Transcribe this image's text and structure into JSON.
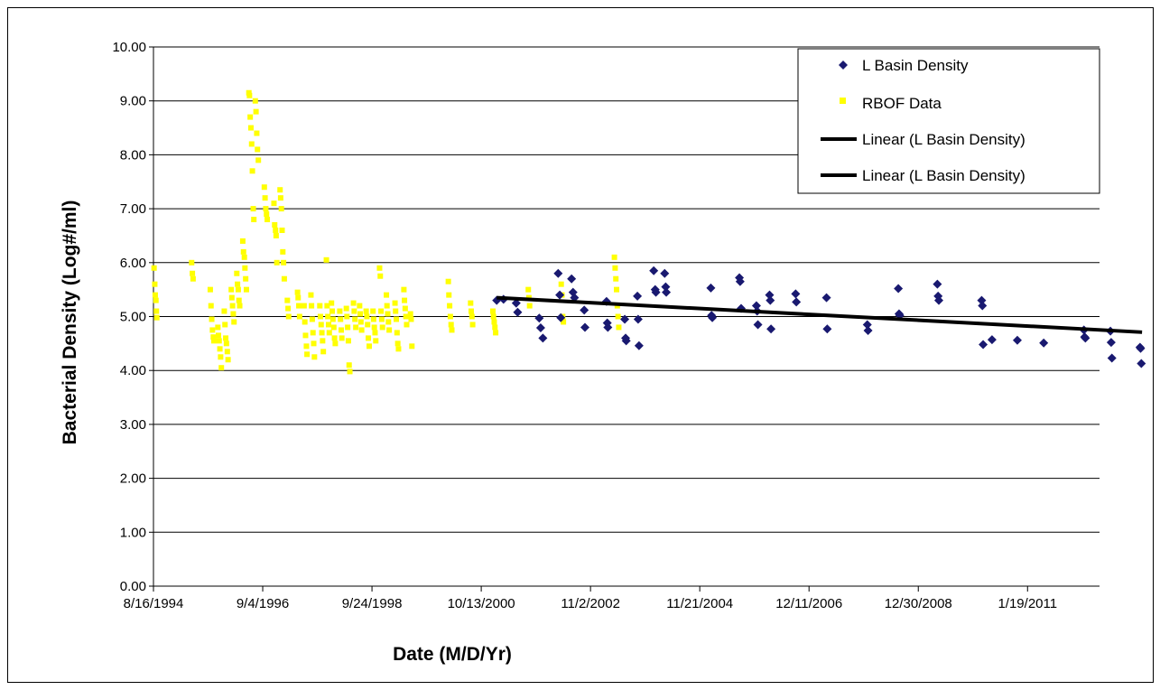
{
  "chart_data": {
    "type": "scatter",
    "xlabel": "Date (M/D/Yr)",
    "ylabel": "Bacterial Density (Log#/ml)",
    "x_axis": {
      "type": "date",
      "min": "1994-08-16",
      "max": "2012-05-27",
      "ticks": [
        "1994-08-16",
        "1996-09-04",
        "1998-09-24",
        "2000-10-13",
        "2002-11-02",
        "2004-11-21",
        "2006-12-11",
        "2008-12-30",
        "2011-01-19"
      ],
      "tick_labels": [
        "8/16/1994",
        "9/4/1996",
        "9/24/1998",
        "10/13/2000",
        "11/2/2002",
        "11/21/2004",
        "12/11/2006",
        "12/30/2008",
        "1/19/2011"
      ]
    },
    "y_axis": {
      "min": 0,
      "max": 10,
      "ticks": [
        0,
        1,
        2,
        3,
        4,
        5,
        6,
        7,
        8,
        9,
        10
      ],
      "tick_labels": [
        "0.00",
        "1.00",
        "2.00",
        "3.00",
        "4.00",
        "5.00",
        "6.00",
        "7.00",
        "8.00",
        "9.00",
        "10.00"
      ]
    },
    "grid": "horizontal",
    "legend_position": "top-right",
    "legend": [
      "L Basin Density",
      "RBOF Data",
      "Linear (L Basin Density)",
      "Linear (L Basin Density)"
    ],
    "colors": {
      "l_basin": "#191970",
      "rbof": "#ffff00",
      "trend": "#000000",
      "grid": "#000000"
    },
    "series": [
      {
        "name": "L Basin Density",
        "marker": "diamond",
        "points": [
          [
            "2001-01-27",
            5.3
          ],
          [
            "2001-03-15",
            5.32
          ],
          [
            "2001-06-10",
            5.25
          ],
          [
            "2001-06-20",
            5.08
          ],
          [
            "2001-11-15",
            4.97
          ],
          [
            "2001-11-25",
            4.79
          ],
          [
            "2001-12-10",
            4.6
          ],
          [
            "2002-03-25",
            5.8
          ],
          [
            "2002-04-05",
            5.4
          ],
          [
            "2002-04-12",
            4.98
          ],
          [
            "2002-06-25",
            5.7
          ],
          [
            "2002-07-05",
            5.45
          ],
          [
            "2002-07-15",
            5.35
          ],
          [
            "2002-09-20",
            5.12
          ],
          [
            "2002-09-25",
            4.8
          ],
          [
            "2003-02-20",
            5.28
          ],
          [
            "2003-02-25",
            4.88
          ],
          [
            "2003-03-01",
            4.8
          ],
          [
            "2003-06-25",
            4.95
          ],
          [
            "2003-07-01",
            4.6
          ],
          [
            "2003-07-05",
            4.55
          ],
          [
            "2003-09-20",
            5.38
          ],
          [
            "2003-09-25",
            4.95
          ],
          [
            "2003-10-01",
            4.46
          ],
          [
            "2004-01-10",
            5.85
          ],
          [
            "2004-01-20",
            5.5
          ],
          [
            "2004-01-25",
            5.45
          ],
          [
            "2004-03-25",
            5.8
          ],
          [
            "2004-04-01",
            5.55
          ],
          [
            "2004-04-05",
            5.45
          ],
          [
            "2005-02-05",
            5.53
          ],
          [
            "2005-02-10",
            5.02
          ],
          [
            "2005-02-15",
            4.98
          ],
          [
            "2005-08-20",
            5.72
          ],
          [
            "2005-08-25",
            5.65
          ],
          [
            "2005-09-01",
            5.15
          ],
          [
            "2005-12-15",
            5.2
          ],
          [
            "2005-12-20",
            5.1
          ],
          [
            "2005-12-25",
            4.85
          ],
          [
            "2006-03-15",
            5.4
          ],
          [
            "2006-03-20",
            5.3
          ],
          [
            "2006-03-25",
            4.77
          ],
          [
            "2006-09-10",
            5.42
          ],
          [
            "2006-09-15",
            5.27
          ],
          [
            "2007-04-10",
            5.35
          ],
          [
            "2007-04-15",
            4.77
          ],
          [
            "2008-01-15",
            4.85
          ],
          [
            "2008-01-20",
            4.74
          ],
          [
            "2008-08-15",
            5.52
          ],
          [
            "2008-08-20",
            5.05
          ],
          [
            "2008-08-25",
            5.02
          ],
          [
            "2009-05-10",
            5.6
          ],
          [
            "2009-05-15",
            5.38
          ],
          [
            "2009-05-20",
            5.3
          ],
          [
            "2010-03-10",
            5.3
          ],
          [
            "2010-03-15",
            5.2
          ],
          [
            "2010-03-20",
            4.48
          ],
          [
            "2010-11-10",
            4.56
          ],
          [
            "2010-05-20",
            4.57
          ],
          [
            "2011-05-10",
            4.51
          ],
          [
            "2012-02-10",
            4.75
          ],
          [
            "2012-02-15",
            4.62
          ],
          [
            "2012-02-20",
            4.6
          ],
          [
            "2012-08-10",
            4.73
          ],
          [
            "2012-08-15",
            4.52
          ],
          [
            "2012-08-20",
            4.23
          ],
          [
            "2013-03-01",
            4.43
          ],
          [
            "2013-03-05",
            4.41
          ],
          [
            "2013-03-10",
            4.13
          ]
        ]
      },
      {
        "name": "RBOF Data",
        "marker": "square",
        "points": [
          [
            "1994-08-20",
            5.9
          ],
          [
            "1994-08-25",
            5.6
          ],
          [
            "1994-08-28",
            5.4
          ],
          [
            "1994-09-02",
            5.3
          ],
          [
            "1994-09-05",
            5.1
          ],
          [
            "1994-09-08",
            4.98
          ],
          [
            "1995-05-05",
            6.0
          ],
          [
            "1995-05-10",
            5.8
          ],
          [
            "1995-05-15",
            5.7
          ],
          [
            "1995-09-10",
            5.5
          ],
          [
            "1995-09-15",
            5.2
          ],
          [
            "1995-09-20",
            4.95
          ],
          [
            "1995-09-25",
            4.75
          ],
          [
            "1995-10-01",
            4.62
          ],
          [
            "1995-10-05",
            4.55
          ],
          [
            "1995-11-01",
            4.8
          ],
          [
            "1995-11-05",
            4.65
          ],
          [
            "1995-11-10",
            4.55
          ],
          [
            "1995-11-15",
            4.4
          ],
          [
            "1995-11-20",
            4.25
          ],
          [
            "1995-11-25",
            4.05
          ],
          [
            "1995-12-15",
            5.1
          ],
          [
            "1995-12-20",
            4.85
          ],
          [
            "1995-12-25",
            4.6
          ],
          [
            "1995-12-30",
            4.5
          ],
          [
            "1996-01-05",
            4.35
          ],
          [
            "1996-01-10",
            4.2
          ],
          [
            "1996-02-01",
            5.5
          ],
          [
            "1996-02-05",
            5.35
          ],
          [
            "1996-02-10",
            5.2
          ],
          [
            "1996-02-15",
            5.05
          ],
          [
            "1996-02-20",
            4.9
          ],
          [
            "1996-03-10",
            5.8
          ],
          [
            "1996-03-15",
            5.6
          ],
          [
            "1996-03-20",
            5.5
          ],
          [
            "1996-03-25",
            5.3
          ],
          [
            "1996-03-30",
            5.2
          ],
          [
            "1996-04-20",
            6.4
          ],
          [
            "1996-04-25",
            6.2
          ],
          [
            "1996-05-01",
            6.1
          ],
          [
            "1996-05-05",
            5.9
          ],
          [
            "1996-05-10",
            5.7
          ],
          [
            "1996-05-15",
            5.5
          ],
          [
            "1996-06-01",
            9.15
          ],
          [
            "1996-06-05",
            9.1
          ],
          [
            "1996-06-10",
            8.7
          ],
          [
            "1996-06-15",
            8.5
          ],
          [
            "1996-06-20",
            8.2
          ],
          [
            "1996-06-25",
            7.7
          ],
          [
            "1996-07-01",
            7.0
          ],
          [
            "1996-07-05",
            6.8
          ],
          [
            "1996-07-15",
            9.0
          ],
          [
            "1996-07-20",
            8.8
          ],
          [
            "1996-07-25",
            8.4
          ],
          [
            "1996-07-30",
            8.1
          ],
          [
            "1996-08-05",
            7.9
          ],
          [
            "1996-09-15",
            7.4
          ],
          [
            "1996-09-20",
            7.2
          ],
          [
            "1996-09-25",
            7.0
          ],
          [
            "1996-09-30",
            6.9
          ],
          [
            "1996-10-05",
            6.8
          ],
          [
            "1996-11-20",
            7.1
          ],
          [
            "1996-11-25",
            6.7
          ],
          [
            "1996-12-01",
            6.6
          ],
          [
            "1996-12-05",
            6.5
          ],
          [
            "1996-12-10",
            6.0
          ],
          [
            "1997-01-01",
            7.35
          ],
          [
            "1997-01-05",
            7.2
          ],
          [
            "1997-01-10",
            7.0
          ],
          [
            "1997-01-15",
            6.6
          ],
          [
            "1997-01-20",
            6.2
          ],
          [
            "1997-01-25",
            6.0
          ],
          [
            "1997-01-30",
            5.7
          ],
          [
            "1997-02-20",
            5.3
          ],
          [
            "1997-02-25",
            5.15
          ],
          [
            "1997-03-01",
            5.0
          ],
          [
            "1997-05-01",
            5.45
          ],
          [
            "1997-05-05",
            5.35
          ],
          [
            "1997-05-10",
            5.2
          ],
          [
            "1997-05-15",
            5.0
          ],
          [
            "1997-06-15",
            5.2
          ],
          [
            "1997-06-20",
            4.9
          ],
          [
            "1997-06-25",
            4.65
          ],
          [
            "1997-07-01",
            4.45
          ],
          [
            "1997-07-05",
            4.3
          ],
          [
            "1997-08-01",
            5.4
          ],
          [
            "1997-08-05",
            5.2
          ],
          [
            "1997-08-10",
            4.95
          ],
          [
            "1997-08-15",
            4.7
          ],
          [
            "1997-08-20",
            4.5
          ],
          [
            "1997-08-25",
            4.25
          ],
          [
            "1997-10-01",
            5.2
          ],
          [
            "1997-10-05",
            5.0
          ],
          [
            "1997-10-10",
            4.85
          ],
          [
            "1997-10-15",
            4.7
          ],
          [
            "1997-10-20",
            4.55
          ],
          [
            "1997-10-25",
            4.35
          ],
          [
            "1997-11-15",
            6.05
          ],
          [
            "1997-11-20",
            5.2
          ],
          [
            "1997-11-25",
            5.0
          ],
          [
            "1997-11-30",
            4.85
          ],
          [
            "1997-12-05",
            4.7
          ],
          [
            "1997-12-20",
            5.25
          ],
          [
            "1997-12-25",
            5.1
          ],
          [
            "1997-12-30",
            4.95
          ],
          [
            "1998-01-05",
            4.8
          ],
          [
            "1998-01-10",
            4.6
          ],
          [
            "1998-01-15",
            4.5
          ],
          [
            "1998-02-15",
            5.1
          ],
          [
            "1998-02-20",
            4.95
          ],
          [
            "1998-02-25",
            4.75
          ],
          [
            "1998-03-01",
            4.6
          ],
          [
            "1998-04-01",
            5.15
          ],
          [
            "1998-04-05",
            5.0
          ],
          [
            "1998-04-10",
            4.8
          ],
          [
            "1998-04-15",
            4.55
          ],
          [
            "1998-04-20",
            4.1
          ],
          [
            "1998-04-25",
            3.98
          ],
          [
            "1998-05-20",
            5.25
          ],
          [
            "1998-05-25",
            5.1
          ],
          [
            "1998-05-30",
            4.95
          ],
          [
            "1998-06-05",
            4.8
          ],
          [
            "1998-07-01",
            5.2
          ],
          [
            "1998-07-05",
            5.05
          ],
          [
            "1998-07-10",
            4.9
          ],
          [
            "1998-07-15",
            4.75
          ],
          [
            "1998-08-15",
            5.1
          ],
          [
            "1998-08-20",
            5.0
          ],
          [
            "1998-08-25",
            4.85
          ],
          [
            "1998-08-30",
            4.6
          ],
          [
            "1998-09-05",
            4.45
          ],
          [
            "1998-10-01",
            5.1
          ],
          [
            "1998-10-05",
            4.95
          ],
          [
            "1998-10-10",
            4.8
          ],
          [
            "1998-10-15",
            4.7
          ],
          [
            "1998-10-20",
            4.55
          ],
          [
            "1998-11-15",
            5.9
          ],
          [
            "1998-11-20",
            5.75
          ],
          [
            "1998-11-25",
            5.1
          ],
          [
            "1998-11-30",
            4.95
          ],
          [
            "1998-12-05",
            4.8
          ],
          [
            "1999-01-01",
            5.4
          ],
          [
            "1999-01-05",
            5.2
          ],
          [
            "1999-01-10",
            5.05
          ],
          [
            "1999-01-15",
            4.9
          ],
          [
            "1999-01-20",
            4.75
          ],
          [
            "1999-03-01",
            5.25
          ],
          [
            "1999-03-05",
            5.1
          ],
          [
            "1999-03-10",
            4.95
          ],
          [
            "1999-03-15",
            4.7
          ],
          [
            "1999-03-20",
            4.5
          ],
          [
            "1999-03-25",
            4.4
          ],
          [
            "1999-05-01",
            5.5
          ],
          [
            "1999-05-05",
            5.3
          ],
          [
            "1999-05-10",
            5.15
          ],
          [
            "1999-05-15",
            5.0
          ],
          [
            "1999-05-20",
            4.85
          ],
          [
            "1999-06-15",
            5.05
          ],
          [
            "1999-06-20",
            4.95
          ],
          [
            "1999-06-25",
            4.45
          ],
          [
            "2000-03-01",
            5.65
          ],
          [
            "2000-03-05",
            5.4
          ],
          [
            "2000-03-10",
            5.2
          ],
          [
            "2000-03-15",
            5.0
          ],
          [
            "2000-03-20",
            4.85
          ],
          [
            "2000-03-25",
            4.75
          ],
          [
            "2000-08-01",
            5.25
          ],
          [
            "2000-08-05",
            5.1
          ],
          [
            "2000-08-10",
            5.0
          ],
          [
            "2000-08-15",
            4.85
          ],
          [
            "2001-01-01",
            5.1
          ],
          [
            "2001-01-05",
            5.0
          ],
          [
            "2001-01-10",
            4.9
          ],
          [
            "2001-01-15",
            4.8
          ],
          [
            "2001-01-20",
            4.7
          ],
          [
            "2001-09-01",
            5.5
          ],
          [
            "2001-09-05",
            5.35
          ],
          [
            "2001-09-10",
            5.2
          ],
          [
            "2002-04-15",
            5.6
          ],
          [
            "2002-04-20",
            5.4
          ],
          [
            "2002-04-25",
            5.0
          ],
          [
            "2002-04-30",
            4.9
          ],
          [
            "2003-04-15",
            6.1
          ],
          [
            "2003-04-20",
            5.9
          ],
          [
            "2003-04-25",
            5.7
          ],
          [
            "2003-04-30",
            5.5
          ],
          [
            "2003-05-05",
            5.2
          ],
          [
            "2003-05-10",
            5.0
          ],
          [
            "2003-05-15",
            4.8
          ]
        ]
      },
      {
        "name": "Linear (L Basin Density)",
        "type": "line",
        "points": [
          [
            "2001-01-27",
            5.35
          ],
          [
            "2013-03-15",
            4.71
          ]
        ]
      }
    ]
  }
}
